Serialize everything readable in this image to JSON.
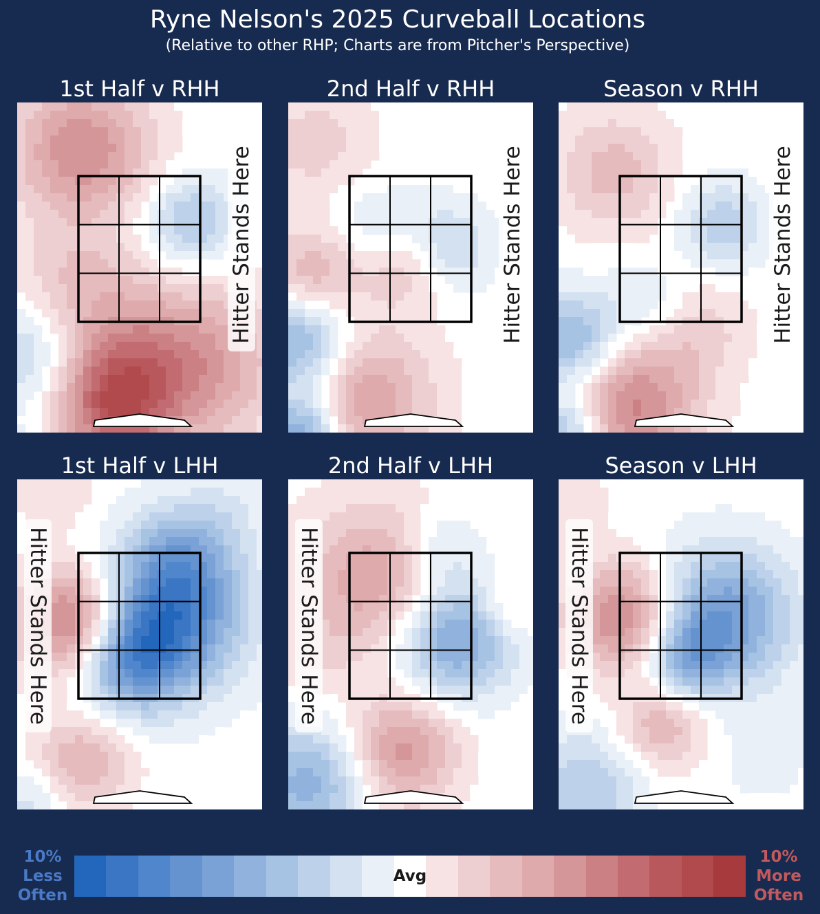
{
  "header": {
    "title": "Ryne Nelson's 2025 Curveball Locations",
    "subtitle": "(Relative to other RHP; Charts are from Pitcher's Perspective)"
  },
  "hitter_label": "Hitter Stands Here",
  "legend": {
    "left_label": "10%\nLess\nOften",
    "mid_label": "Avg",
    "right_label": "10%\nMore\nOften",
    "left_color": "#4a7ac6",
    "right_color": "#c05a5e"
  },
  "chart_data": [
    {
      "type": "heatmap",
      "title": "1st Half v RHH",
      "batter_side": "R",
      "half": "1st"
    },
    {
      "type": "heatmap",
      "title": "2nd Half v RHH",
      "batter_side": "R",
      "half": "2nd"
    },
    {
      "type": "heatmap",
      "title": "Season v RHH",
      "batter_side": "R",
      "half": "Season"
    },
    {
      "type": "heatmap",
      "title": "1st Half v LHH",
      "batter_side": "L",
      "half": "1st"
    },
    {
      "type": "heatmap",
      "title": "2nd Half v LHH",
      "batter_side": "L",
      "half": "2nd"
    },
    {
      "type": "heatmap",
      "title": "Season v LHH",
      "batter_side": "L",
      "half": "Season"
    }
  ],
  "colorscale": {
    "range": [
      -10,
      10
    ],
    "colors": [
      "#2367bc",
      "#3a76c4",
      "#4f86cc",
      "#6593d0",
      "#7aa2d6",
      "#90b2dc",
      "#a7c3e4",
      "#bdd2ea",
      "#d4e1f1",
      "#eaf0f8",
      "#ffffff",
      "#f7e3e4",
      "#eecfd1",
      "#e6bbbe",
      "#deaaac",
      "#d5969a",
      "#cb8084",
      "#c26b70",
      "#b9585c",
      "#b04a4d",
      "#a63a3d"
    ]
  }
}
